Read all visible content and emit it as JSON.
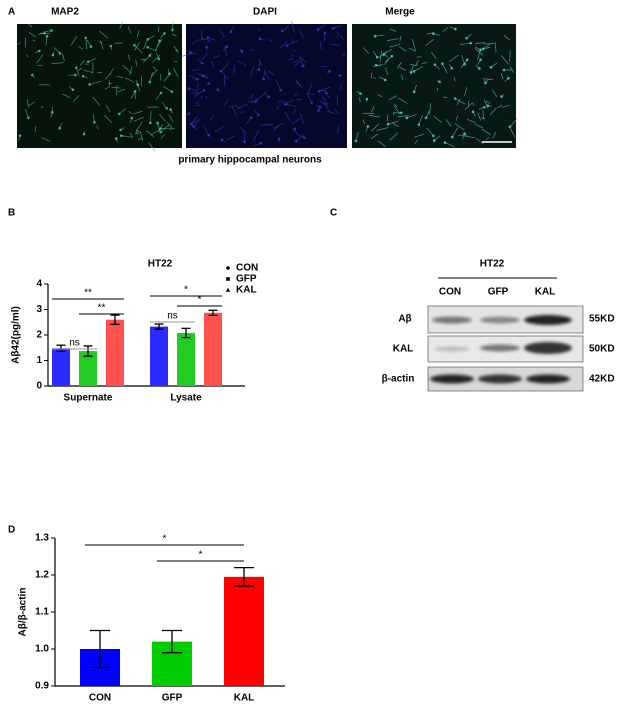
{
  "panel_a": {
    "label": "A",
    "images": [
      "MAP2",
      "DAPI",
      "Merge"
    ],
    "caption": "primary hippocampal neurons"
  },
  "panel_b": {
    "label": "B"
  },
  "panel_c": {
    "label": "C",
    "title": "HT22",
    "lanes": [
      "CON",
      "GFP",
      "KAL"
    ],
    "rows": [
      "Aβ",
      "KAL",
      "β-actin"
    ],
    "sizes": [
      "55KD",
      "50KD",
      "42KD"
    ]
  },
  "panel_d": {
    "label": "D"
  },
  "chart_data": [
    {
      "type": "bar",
      "title": "HT22",
      "ylabel": "Aβ42(pg/ml)",
      "categories": [
        "Supernate",
        "Lysate"
      ],
      "series": [
        {
          "name": "CON",
          "color": "#2b2bff",
          "values": [
            1.48,
            2.33
          ],
          "errors": [
            0.12,
            0.1
          ]
        },
        {
          "name": "GFP",
          "color": "#22cc22",
          "values": [
            1.37,
            2.08
          ],
          "errors": [
            0.2,
            0.18
          ]
        },
        {
          "name": "KAL",
          "color": "#ff5050",
          "values": [
            2.6,
            2.87
          ],
          "errors": [
            0.18,
            0.1
          ]
        }
      ],
      "ylim": [
        0,
        4
      ],
      "yticks": [
        0,
        1,
        2,
        3,
        4
      ],
      "annotations": [
        "**",
        "**",
        "ns",
        "*",
        "*",
        "ns"
      ],
      "legend": "top-right"
    },
    {
      "type": "bar",
      "ylabel": "Aβ/β-actin",
      "categories": [
        "CON",
        "GFP",
        "KAL"
      ],
      "values": [
        1.0,
        1.02,
        1.195
      ],
      "errors": [
        0.05,
        0.03,
        0.025
      ],
      "colors": [
        "#0000ff",
        "#00cc00",
        "#ff0000"
      ],
      "ylim": [
        0.9,
        1.3
      ],
      "yticks": [
        0.9,
        {
          "value": 1.0,
          "label": "1.0"
        },
        1.1,
        1.2,
        1.3
      ],
      "annotations": [
        "*",
        "*"
      ]
    }
  ]
}
